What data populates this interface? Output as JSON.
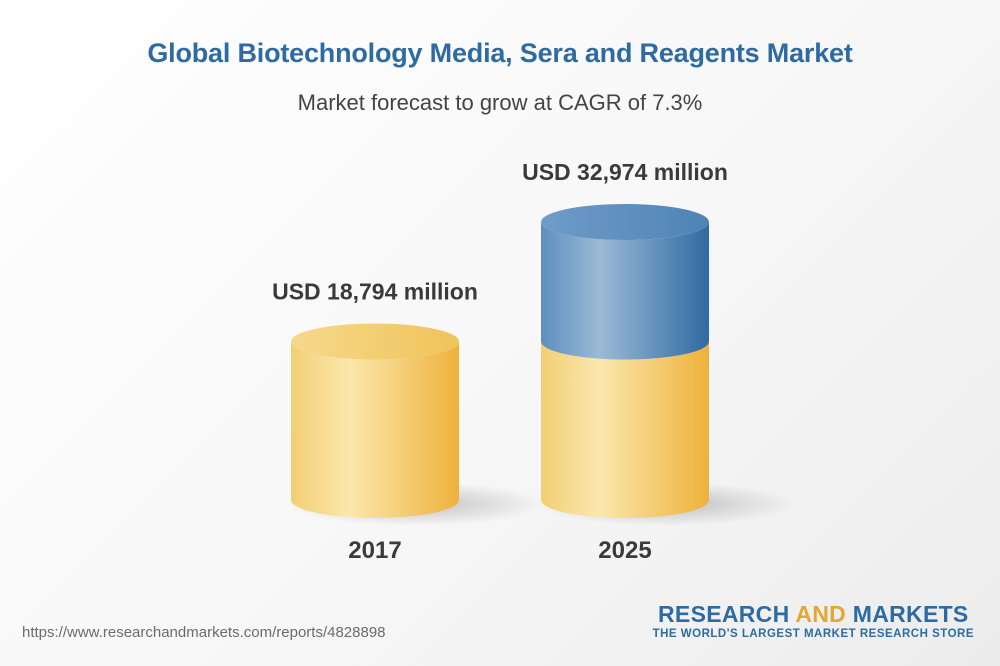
{
  "chart_data": {
    "type": "bar",
    "title": "Global Biotechnology Media, Sera and Reagents Market",
    "subtitle": "Market forecast to grow at CAGR of 7.3%",
    "categories": [
      "2017",
      "2025"
    ],
    "values": [
      18794,
      32974
    ],
    "value_labels": [
      "USD 18,794 million",
      "USD 32,974 million"
    ],
    "unit": "USD million",
    "grid": false,
    "legend": "none"
  },
  "footer": {
    "url": "https://www.researchandmarkets.com/reports/4828898",
    "brand_part1": "RESEARCH ",
    "brand_part2": "AND",
    "brand_part3": " MARKETS",
    "tagline": "THE WORLD'S LARGEST MARKET RESEARCH STORE"
  },
  "colors": {
    "base": "#f3c24a",
    "growth": "#4a7fb0",
    "title": "#2e6ba3"
  }
}
